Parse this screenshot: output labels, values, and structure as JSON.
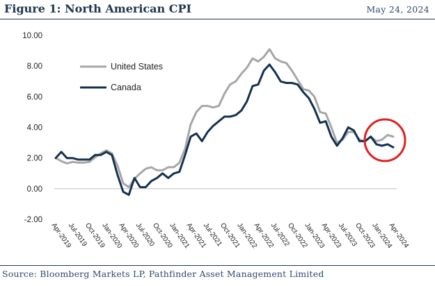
{
  "header": {
    "title": "Figure 1: North American CPI",
    "date": "May 24, 2024"
  },
  "footer": {
    "source": "Source: Bloomberg Markets LP, Pathfinder Asset Management Limited"
  },
  "colors": {
    "us": "#a6a6a6",
    "canada": "#13304f",
    "highlight": "#e02020",
    "rule": "#1f3550"
  },
  "chart_data": {
    "type": "line",
    "title": "Figure 1: North American CPI",
    "xlabel": "",
    "ylabel": "",
    "ylim": [
      -2,
      10
    ],
    "yticks": [
      "10.00",
      "8.00",
      "6.00",
      "4.00",
      "2.00",
      "0.00",
      "-2.00"
    ],
    "ytick_values": [
      10,
      8,
      6,
      4,
      2,
      0,
      -2
    ],
    "x_tick_labels": [
      "Apr-2019",
      "Jul-2019",
      "Oct-2019",
      "Jan-2020",
      "Apr-2020",
      "Jul-2020",
      "Oct-2020",
      "Jan-2021",
      "Apr-2021",
      "Jul-2021",
      "Oct-2021",
      "Jan-2022",
      "Apr-2022",
      "Jul-2022",
      "Oct-2022",
      "Jan-2023",
      "Apr-2023",
      "Jul-2023",
      "Oct-2023",
      "Jan-2024",
      "Apr-2024"
    ],
    "legend_position": "upper-left",
    "series": [
      {
        "name": "United States",
        "values": [
          2.0,
          1.8,
          1.65,
          1.75,
          1.7,
          1.7,
          1.75,
          2.05,
          2.3,
          2.5,
          2.3,
          1.5,
          0.35,
          0.1,
          0.65,
          1.0,
          1.3,
          1.4,
          1.2,
          1.2,
          1.4,
          1.4,
          1.7,
          2.6,
          4.2,
          5.0,
          5.4,
          5.4,
          5.3,
          5.4,
          6.2,
          6.8,
          7.0,
          7.5,
          7.9,
          8.5,
          8.3,
          8.6,
          9.1,
          8.5,
          8.3,
          8.2,
          7.7,
          7.1,
          6.5,
          6.4,
          6.0,
          5.0,
          4.9,
          4.0,
          3.0,
          3.2,
          3.7,
          3.7,
          3.2,
          3.1,
          3.4,
          3.1,
          3.2,
          3.5,
          3.4
        ]
      },
      {
        "name": "Canada",
        "values": [
          2.0,
          2.4,
          2.0,
          2.0,
          1.9,
          1.9,
          1.9,
          2.2,
          2.2,
          2.4,
          2.2,
          0.9,
          -0.2,
          -0.4,
          0.7,
          0.1,
          0.1,
          0.5,
          0.7,
          1.0,
          0.7,
          1.0,
          1.1,
          2.2,
          3.4,
          3.6,
          3.1,
          3.7,
          4.1,
          4.4,
          4.7,
          4.7,
          4.8,
          5.1,
          5.7,
          6.7,
          6.8,
          7.7,
          8.1,
          7.6,
          7.0,
          6.9,
          6.9,
          6.8,
          6.3,
          5.9,
          5.2,
          4.3,
          4.4,
          3.4,
          2.8,
          3.3,
          4.0,
          3.8,
          3.1,
          3.1,
          3.4,
          2.9,
          2.8,
          2.9,
          2.7
        ]
      }
    ],
    "annotation": "red circle highlighting recent values (Jan-2024 to Apr-2024)"
  }
}
